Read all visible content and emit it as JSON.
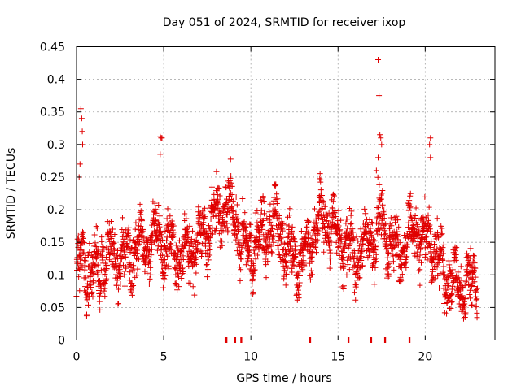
{
  "chart_data": {
    "type": "scatter",
    "title": "Day 051 of 2024, SRMTID for receiver ixop",
    "xlabel": "GPS time / hours",
    "ylabel": "SRMTID / TECUs",
    "xlim": [
      0,
      24
    ],
    "ylim": [
      0,
      0.45
    ],
    "x_ticks": [
      0,
      5,
      10,
      15,
      20
    ],
    "x_tick_labels": [
      "0",
      "5",
      "10",
      "15",
      "20"
    ],
    "y_ticks": [
      0,
      0.05,
      0.1,
      0.15,
      0.2,
      0.25,
      0.3,
      0.35,
      0.4,
      0.45
    ],
    "y_tick_labels": [
      "0",
      "0.05",
      "0.1",
      "0.15",
      "0.2",
      "0.25",
      "0.3",
      "0.35",
      "0.4",
      "0.45"
    ],
    "grid": true,
    "marker": "+",
    "color": "#e00000",
    "series": [
      {
        "name": "SRMTID",
        "trend": [
          [
            0,
            0.11
          ],
          [
            0.5,
            0.12
          ],
          [
            1,
            0.1
          ],
          [
            1.5,
            0.12
          ],
          [
            2,
            0.13
          ],
          [
            2.5,
            0.12
          ],
          [
            3,
            0.13
          ],
          [
            3.5,
            0.14
          ],
          [
            4,
            0.15
          ],
          [
            4.5,
            0.16
          ],
          [
            5,
            0.15
          ],
          [
            5.5,
            0.14
          ],
          [
            6,
            0.13
          ],
          [
            6.5,
            0.14
          ],
          [
            7,
            0.15
          ],
          [
            7.5,
            0.17
          ],
          [
            8,
            0.19
          ],
          [
            8.5,
            0.2
          ],
          [
            9,
            0.19
          ],
          [
            9.5,
            0.15
          ],
          [
            10,
            0.14
          ],
          [
            10.5,
            0.15
          ],
          [
            11,
            0.17
          ],
          [
            11.5,
            0.18
          ],
          [
            12,
            0.14
          ],
          [
            12.5,
            0.13
          ],
          [
            13,
            0.12
          ],
          [
            13.5,
            0.16
          ],
          [
            14,
            0.19
          ],
          [
            14.5,
            0.18
          ],
          [
            15,
            0.16
          ],
          [
            15.5,
            0.14
          ],
          [
            16,
            0.13
          ],
          [
            16.5,
            0.14
          ],
          [
            17,
            0.16
          ],
          [
            17.5,
            0.19
          ],
          [
            18,
            0.15
          ],
          [
            18.5,
            0.13
          ],
          [
            19,
            0.15
          ],
          [
            19.5,
            0.17
          ],
          [
            20,
            0.15
          ],
          [
            20.5,
            0.14
          ],
          [
            21,
            0.11
          ],
          [
            21.5,
            0.09
          ],
          [
            22,
            0.08
          ],
          [
            22.5,
            0.09
          ],
          [
            23,
            0.09
          ]
        ],
        "spread": 0.035,
        "point_count": 2200,
        "spikes": [
          [
            0.25,
            0.355
          ],
          [
            0.3,
            0.34
          ],
          [
            0.33,
            0.32
          ],
          [
            0.35,
            0.3
          ],
          [
            4.8,
            0.312
          ],
          [
            4.85,
            0.31
          ],
          [
            4.9,
            0.31
          ],
          [
            4.8,
            0.285
          ],
          [
            17.3,
            0.43
          ],
          [
            17.35,
            0.375
          ],
          [
            17.4,
            0.315
          ],
          [
            17.45,
            0.31
          ],
          [
            17.5,
            0.3
          ],
          [
            20.3,
            0.31
          ],
          [
            20.25,
            0.3
          ],
          [
            20.3,
            0.28
          ],
          [
            0.2,
            0.27
          ],
          [
            0.15,
            0.25
          ],
          [
            17.3,
            0.28
          ],
          [
            17.2,
            0.26
          ]
        ],
        "zero_points": [
          8.55,
          8.6,
          9.1,
          9.45,
          13.4,
          15.6,
          16.9,
          17.7,
          19.1
        ]
      }
    ]
  }
}
